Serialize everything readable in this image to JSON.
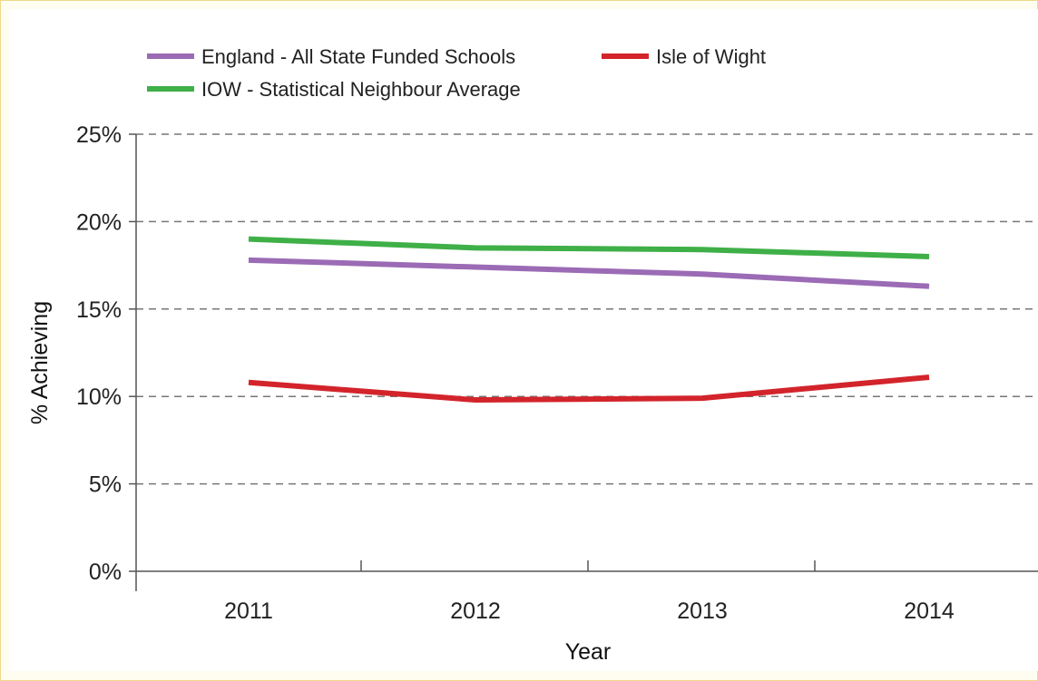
{
  "chart_data": {
    "type": "line",
    "categories": [
      "2011",
      "2012",
      "2013",
      "2014"
    ],
    "series": [
      {
        "name": "England - All State Funded Schools",
        "color": "#9b6bb5",
        "values": [
          17.8,
          17.4,
          17.0,
          16.3
        ]
      },
      {
        "name": "Isle of Wight",
        "color": "#d3242b",
        "values": [
          10.8,
          9.8,
          9.9,
          11.1
        ]
      },
      {
        "name": "IOW - Statistical Neighbour Average",
        "color": "#3faf48",
        "values": [
          19.0,
          18.5,
          18.4,
          18.0
        ]
      }
    ],
    "xlabel": "Year",
    "ylabel": "% Achieving",
    "ylim": [
      0,
      25
    ],
    "yticks": [
      "0%",
      "5%",
      "10%",
      "15%",
      "20%",
      "25%"
    ],
    "grid": true,
    "legend_position": "top-left"
  }
}
